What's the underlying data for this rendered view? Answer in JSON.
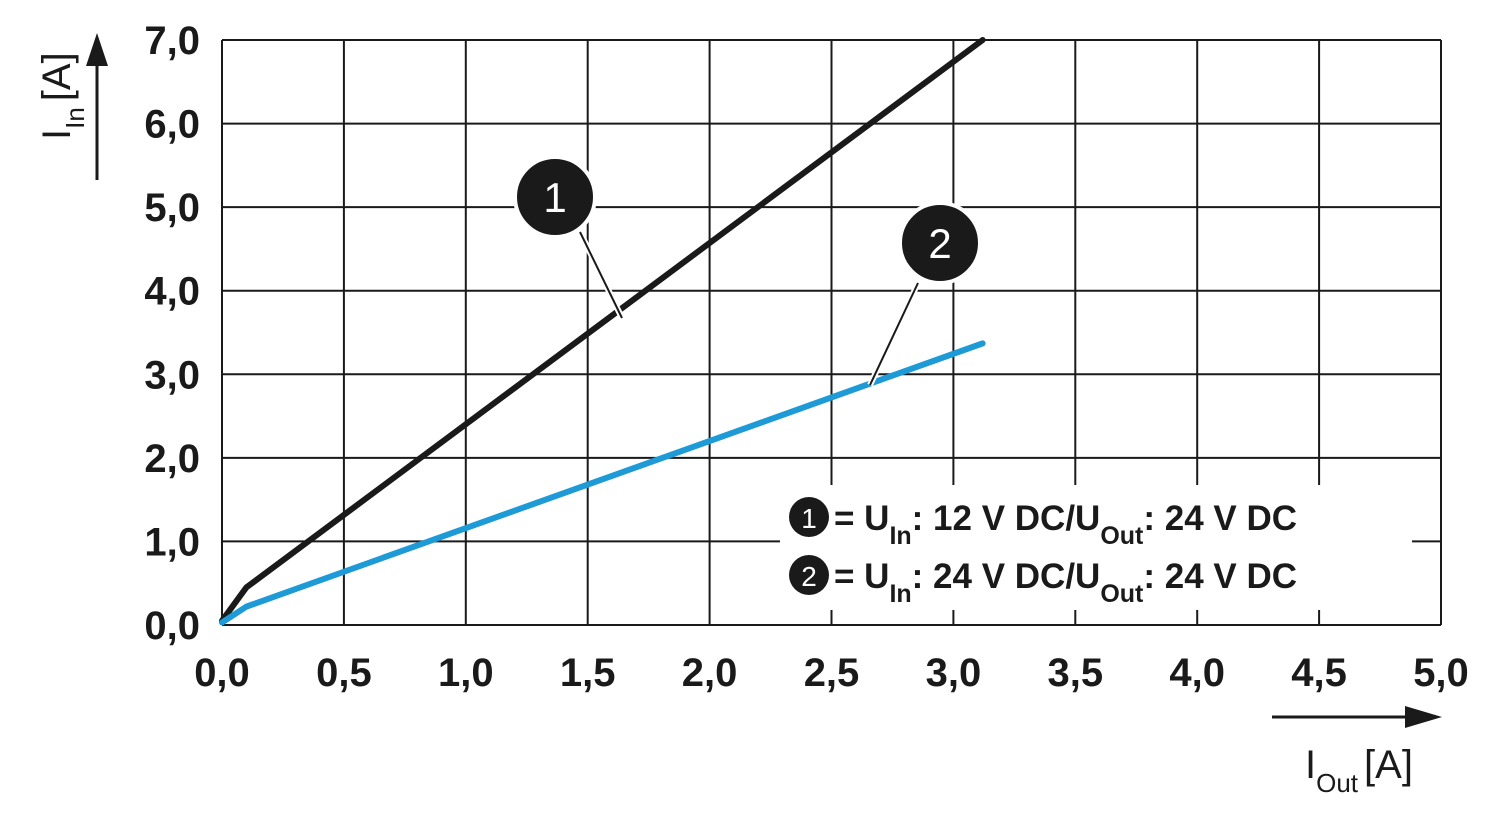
{
  "chart_data": {
    "type": "line",
    "x_label": {
      "main": "I",
      "sub": "Out",
      "unit": "[A]"
    },
    "y_label": {
      "main": "I",
      "sub": "In",
      "unit": "[A]"
    },
    "xlim": [
      0,
      5
    ],
    "ylim": [
      0,
      7
    ],
    "xticks": [
      {
        "value": 0,
        "label": "0,0"
      },
      {
        "value": 0.5,
        "label": "0,5"
      },
      {
        "value": 1,
        "label": "1,0"
      },
      {
        "value": 1.5,
        "label": "1,5"
      },
      {
        "value": 2,
        "label": "2,0"
      },
      {
        "value": 2.5,
        "label": "2,5"
      },
      {
        "value": 3,
        "label": "3,0"
      },
      {
        "value": 3.5,
        "label": "3,5"
      },
      {
        "value": 4,
        "label": "4,0"
      },
      {
        "value": 4.5,
        "label": "4,5"
      },
      {
        "value": 5,
        "label": "5,0"
      }
    ],
    "yticks": [
      {
        "value": 0,
        "label": "0,0"
      },
      {
        "value": 1,
        "label": "1,0"
      },
      {
        "value": 2,
        "label": "2,0"
      },
      {
        "value": 3,
        "label": "3,0"
      },
      {
        "value": 4,
        "label": "4,0"
      },
      {
        "value": 5,
        "label": "5,0"
      },
      {
        "value": 6,
        "label": "6,0"
      },
      {
        "value": 7,
        "label": "7,0"
      }
    ],
    "grid": true,
    "series": [
      {
        "label": "1",
        "color": "#1a1a1a",
        "x": [
          0,
          0.1,
          3.12
        ],
        "values": [
          0.05,
          0.45,
          7.0
        ]
      },
      {
        "label": "2",
        "color": "#1e9ad6",
        "x": [
          0,
          0.1,
          3.12
        ],
        "values": [
          0.03,
          0.22,
          3.37
        ]
      }
    ],
    "legend": [
      {
        "marker": "1",
        "parts": [
          "= U",
          "In",
          ": 12 V DC/U",
          "Out",
          ": 24 V DC"
        ]
      },
      {
        "marker": "2",
        "parts": [
          "= U",
          "In",
          ": 24 V DC/U",
          "Out",
          ": 24 V DC"
        ]
      }
    ]
  }
}
